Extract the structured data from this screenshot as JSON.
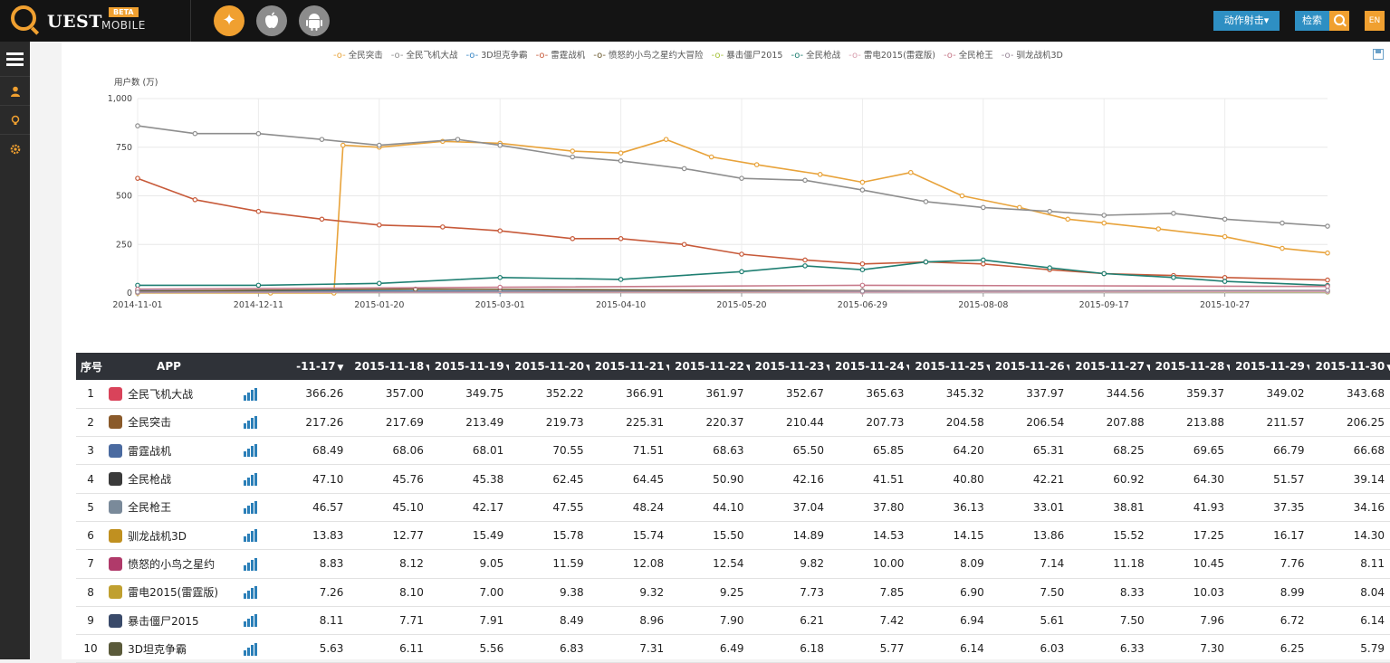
{
  "header": {
    "logo_text": "UEST",
    "logo_beta": "BETA",
    "logo_mobile": "MOBILE",
    "platforms": [
      {
        "name": "all-platforms",
        "icon": "apple-android-icon",
        "active": true
      },
      {
        "name": "ios",
        "icon": "apple-icon",
        "active": false
      },
      {
        "name": "android",
        "icon": "android-icon",
        "active": false
      }
    ],
    "action_button": "动作射击▾",
    "search_label": "检索",
    "lang_button": "EN"
  },
  "sidebar": {
    "items": [
      {
        "name": "menu",
        "icon": "hamburger-icon"
      },
      {
        "name": "user",
        "icon": "user-icon"
      },
      {
        "name": "bulb",
        "icon": "bulb-icon"
      },
      {
        "name": "settings",
        "icon": "gear-icon"
      }
    ]
  },
  "chart_data": {
    "type": "line",
    "ylabel": "用户数 (万)",
    "ylim": [
      0,
      1000
    ],
    "yticks": [
      "0",
      "250",
      "500",
      "750",
      "1,000"
    ],
    "xlim": [
      "2014-11-01",
      "2015-11-30"
    ],
    "xticks": [
      "2014-11-01",
      "2014-12-11",
      "2015-01-20",
      "2015-03-01",
      "2015-04-10",
      "2015-05-20",
      "2015-06-29",
      "2015-08-08",
      "2015-09-17",
      "2015-10-27"
    ],
    "grid": true,
    "legend_position": "top",
    "series": [
      {
        "name": "全民突击",
        "color": "#e8a33b",
        "points": [
          [
            "2014-11-01",
            0
          ],
          [
            "2014-12-15",
            0
          ],
          [
            "2015-01-05",
            0
          ],
          [
            "2015-01-08",
            760
          ],
          [
            "2015-01-20",
            750
          ],
          [
            "2015-02-10",
            780
          ],
          [
            "2015-03-01",
            770
          ],
          [
            "2015-03-25",
            730
          ],
          [
            "2015-04-10",
            720
          ],
          [
            "2015-04-25",
            790
          ],
          [
            "2015-05-10",
            700
          ],
          [
            "2015-05-25",
            660
          ],
          [
            "2015-06-15",
            610
          ],
          [
            "2015-06-29",
            570
          ],
          [
            "2015-07-15",
            620
          ],
          [
            "2015-08-01",
            500
          ],
          [
            "2015-08-20",
            440
          ],
          [
            "2015-09-05",
            380
          ],
          [
            "2015-09-17",
            360
          ],
          [
            "2015-10-05",
            330
          ],
          [
            "2015-10-27",
            290
          ],
          [
            "2015-11-15",
            230
          ],
          [
            "2015-11-30",
            206
          ]
        ]
      },
      {
        "name": "全民飞机大战",
        "color": "#8e8e8e",
        "points": [
          [
            "2014-11-01",
            860
          ],
          [
            "2014-11-20",
            820
          ],
          [
            "2014-12-11",
            820
          ],
          [
            "2015-01-01",
            790
          ],
          [
            "2015-01-20",
            760
          ],
          [
            "2015-02-15",
            790
          ],
          [
            "2015-03-01",
            760
          ],
          [
            "2015-03-25",
            700
          ],
          [
            "2015-04-10",
            680
          ],
          [
            "2015-05-01",
            640
          ],
          [
            "2015-05-20",
            590
          ],
          [
            "2015-06-10",
            580
          ],
          [
            "2015-06-29",
            530
          ],
          [
            "2015-07-20",
            470
          ],
          [
            "2015-08-08",
            440
          ],
          [
            "2015-08-30",
            420
          ],
          [
            "2015-09-17",
            400
          ],
          [
            "2015-10-10",
            410
          ],
          [
            "2015-10-27",
            380
          ],
          [
            "2015-11-15",
            360
          ],
          [
            "2015-11-30",
            344
          ]
        ]
      },
      {
        "name": "3D坦克争霸",
        "color": "#3a87c5",
        "points": [
          [
            "2014-11-01",
            12
          ],
          [
            "2015-03-01",
            10
          ],
          [
            "2015-06-29",
            8
          ],
          [
            "2015-11-30",
            6
          ]
        ]
      },
      {
        "name": "雷霆战机",
        "color": "#c75a3a",
        "points": [
          [
            "2014-11-01",
            590
          ],
          [
            "2014-11-20",
            480
          ],
          [
            "2014-12-11",
            420
          ],
          [
            "2015-01-01",
            380
          ],
          [
            "2015-01-20",
            350
          ],
          [
            "2015-02-10",
            340
          ],
          [
            "2015-03-01",
            320
          ],
          [
            "2015-03-25",
            280
          ],
          [
            "2015-04-10",
            280
          ],
          [
            "2015-05-01",
            250
          ],
          [
            "2015-05-20",
            200
          ],
          [
            "2015-06-10",
            170
          ],
          [
            "2015-06-29",
            150
          ],
          [
            "2015-07-20",
            160
          ],
          [
            "2015-08-08",
            150
          ],
          [
            "2015-08-30",
            120
          ],
          [
            "2015-09-17",
            100
          ],
          [
            "2015-10-10",
            90
          ],
          [
            "2015-10-27",
            80
          ],
          [
            "2015-11-30",
            67
          ]
        ]
      },
      {
        "name": "愤怒的小鸟之星约大冒险",
        "color": "#6b5a2e",
        "points": [
          [
            "2014-11-01",
            10
          ],
          [
            "2015-02-01",
            20
          ],
          [
            "2015-06-29",
            12
          ],
          [
            "2015-11-30",
            8
          ]
        ]
      },
      {
        "name": "暴击僵尸2015",
        "color": "#a6c23a",
        "points": [
          [
            "2014-11-01",
            2
          ],
          [
            "2015-06-29",
            6
          ],
          [
            "2015-11-30",
            6
          ]
        ]
      },
      {
        "name": "全民枪战",
        "color": "#1f7f72",
        "points": [
          [
            "2014-11-01",
            40
          ],
          [
            "2014-12-11",
            40
          ],
          [
            "2015-01-20",
            50
          ],
          [
            "2015-03-01",
            80
          ],
          [
            "2015-04-10",
            70
          ],
          [
            "2015-05-20",
            110
          ],
          [
            "2015-06-10",
            140
          ],
          [
            "2015-06-29",
            120
          ],
          [
            "2015-07-20",
            160
          ],
          [
            "2015-08-08",
            170
          ],
          [
            "2015-08-30",
            130
          ],
          [
            "2015-09-17",
            100
          ],
          [
            "2015-10-10",
            80
          ],
          [
            "2015-10-27",
            60
          ],
          [
            "2015-11-30",
            39
          ]
        ]
      },
      {
        "name": "雷电2015(雷霆版)",
        "color": "#d9a0b0",
        "points": [
          [
            "2014-11-01",
            3
          ],
          [
            "2015-06-29",
            5
          ],
          [
            "2015-11-30",
            8
          ]
        ]
      },
      {
        "name": "全民枪王",
        "color": "#c77a8a",
        "points": [
          [
            "2014-11-01",
            20
          ],
          [
            "2015-03-01",
            30
          ],
          [
            "2015-06-29",
            40
          ],
          [
            "2015-11-30",
            34
          ]
        ]
      },
      {
        "name": "驯龙战机3D",
        "color": "#9a8a9a",
        "points": [
          [
            "2014-11-01",
            5
          ],
          [
            "2015-06-29",
            10
          ],
          [
            "2015-11-30",
            14
          ]
        ]
      }
    ]
  },
  "table": {
    "rank_header": "序号",
    "app_header": "APP",
    "date_headers": [
      "-11-17",
      "2015-11-18",
      "2015-11-19",
      "2015-11-20",
      "2015-11-21",
      "2015-11-22",
      "2015-11-23",
      "2015-11-24",
      "2015-11-25",
      "2015-11-26",
      "2015-11-27",
      "2015-11-28",
      "2015-11-29",
      "2015-11-30"
    ],
    "sort_arrow": "▼",
    "rows": [
      {
        "rank": "1",
        "app": "全民飞机大战",
        "icon_color": "#d9435a",
        "values": [
          "366.26",
          "357.00",
          "349.75",
          "352.22",
          "366.91",
          "361.97",
          "352.67",
          "365.63",
          "345.32",
          "337.97",
          "344.56",
          "359.37",
          "349.02",
          "343.68"
        ]
      },
      {
        "rank": "2",
        "app": "全民突击",
        "icon_color": "#8a5a2a",
        "values": [
          "217.26",
          "217.69",
          "213.49",
          "219.73",
          "225.31",
          "220.37",
          "210.44",
          "207.73",
          "204.58",
          "206.54",
          "207.88",
          "213.88",
          "211.57",
          "206.25"
        ]
      },
      {
        "rank": "3",
        "app": "雷霆战机",
        "icon_color": "#4a6aa0",
        "values": [
          "68.49",
          "68.06",
          "68.01",
          "70.55",
          "71.51",
          "68.63",
          "65.50",
          "65.85",
          "64.20",
          "65.31",
          "68.25",
          "69.65",
          "66.79",
          "66.68"
        ]
      },
      {
        "rank": "4",
        "app": "全民枪战",
        "icon_color": "#3a3a3a",
        "values": [
          "47.10",
          "45.76",
          "45.38",
          "62.45",
          "64.45",
          "50.90",
          "42.16",
          "41.51",
          "40.80",
          "42.21",
          "60.92",
          "64.30",
          "51.57",
          "39.14"
        ]
      },
      {
        "rank": "5",
        "app": "全民枪王",
        "icon_color": "#7a8a9a",
        "values": [
          "46.57",
          "45.10",
          "42.17",
          "47.55",
          "48.24",
          "44.10",
          "37.04",
          "37.80",
          "36.13",
          "33.01",
          "38.81",
          "41.93",
          "37.35",
          "34.16"
        ]
      },
      {
        "rank": "6",
        "app": "驯龙战机3D",
        "icon_color": "#c09020",
        "values": [
          "13.83",
          "12.77",
          "15.49",
          "15.78",
          "15.74",
          "15.50",
          "14.89",
          "14.53",
          "14.15",
          "13.86",
          "15.52",
          "17.25",
          "16.17",
          "14.30"
        ]
      },
      {
        "rank": "7",
        "app": "愤怒的小鸟之星约",
        "icon_color": "#b03a6a",
        "values": [
          "8.83",
          "8.12",
          "9.05",
          "11.59",
          "12.08",
          "12.54",
          "9.82",
          "10.00",
          "8.09",
          "7.14",
          "11.18",
          "10.45",
          "7.76",
          "8.11"
        ]
      },
      {
        "rank": "8",
        "app": "雷电2015(雷霆版)",
        "icon_color": "#c0a030",
        "values": [
          "7.26",
          "8.10",
          "7.00",
          "9.38",
          "9.32",
          "9.25",
          "7.73",
          "7.85",
          "6.90",
          "7.50",
          "8.33",
          "10.03",
          "8.99",
          "8.04"
        ]
      },
      {
        "rank": "9",
        "app": "暴击僵尸2015",
        "icon_color": "#3a4a6a",
        "values": [
          "8.11",
          "7.71",
          "7.91",
          "8.49",
          "8.96",
          "7.90",
          "6.21",
          "7.42",
          "6.94",
          "5.61",
          "7.50",
          "7.96",
          "6.72",
          "6.14"
        ]
      },
      {
        "rank": "10",
        "app": "3D坦克争霸",
        "icon_color": "#5a5a3a",
        "values": [
          "5.63",
          "6.11",
          "5.56",
          "6.83",
          "7.31",
          "6.49",
          "6.18",
          "5.77",
          "6.14",
          "6.03",
          "6.33",
          "7.30",
          "6.25",
          "5.79"
        ]
      }
    ]
  }
}
